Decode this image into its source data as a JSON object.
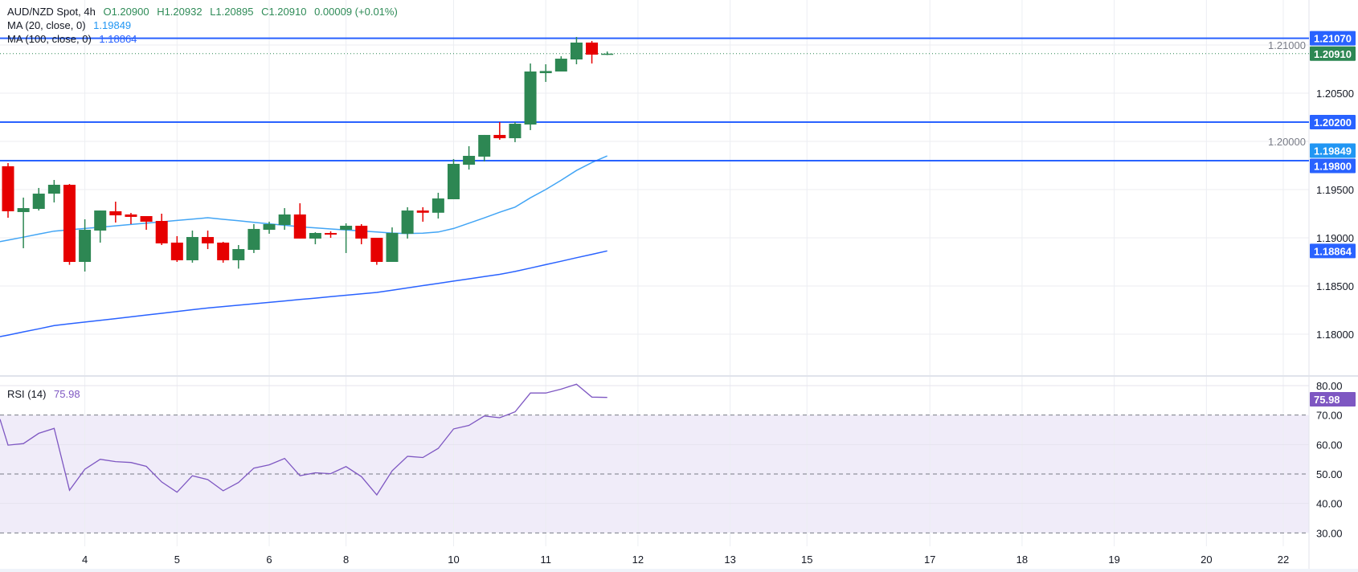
{
  "legend": {
    "symbol": "AUD/NZD Spot, 4h",
    "open": "O1.20900",
    "high": "H1.20932",
    "low": "L1.20895",
    "close": "C1.20910",
    "change": "0.00009 (+0.01%)",
    "ma20_label": "MA (20, close, 0)",
    "ma20_value": "1.19849",
    "ma100_label": "MA (100, close, 0)",
    "ma100_value": "1.18864",
    "rsi_label": "RSI (14)",
    "rsi_value": "75.98"
  },
  "colors": {
    "up": "#2d8753",
    "down": "#e60000",
    "ma20": "#42a5f5",
    "ma100": "#2962ff",
    "hline": "#2962ff",
    "rsi": "#7e57c2",
    "rsi_band": "#f0ecf9",
    "price_label": "#2d8753"
  },
  "chart_data": [
    {
      "type": "candlestick",
      "timeframe": "4h",
      "price_axis": {
        "range": [
          1.1775,
          1.213
        ],
        "ticks": [
          "1.18000",
          "1.18500",
          "1.19000",
          "1.19500",
          "1.20000",
          "1.20500",
          "1.21000"
        ]
      },
      "x_axis": {
        "ticks": [
          "4",
          "5",
          "6",
          "8",
          "10",
          "11",
          "12",
          "13",
          "15",
          "17",
          "18",
          "19",
          "20",
          "22"
        ],
        "tick_candle_index": [
          5,
          11,
          17,
          22,
          29,
          35,
          41,
          47,
          52,
          60,
          66,
          72,
          78,
          83
        ]
      },
      "candles": [
        [
          1.19742,
          1.19775,
          1.19208,
          1.19275
        ],
        [
          1.19267,
          1.19417,
          1.18892,
          1.19308
        ],
        [
          1.193,
          1.19517,
          1.19283,
          1.19458
        ],
        [
          1.19458,
          1.196,
          1.19367,
          1.1955
        ],
        [
          1.1955,
          1.19558,
          1.1872,
          1.1875
        ],
        [
          1.1875,
          1.19192,
          1.1865,
          1.19083
        ],
        [
          1.19075,
          1.19283,
          1.1895,
          1.19283
        ],
        [
          1.19275,
          1.19375,
          1.19158,
          1.19233
        ],
        [
          1.19242,
          1.19258,
          1.19142,
          1.19217
        ],
        [
          1.19225,
          1.19225,
          1.19083,
          1.19167
        ],
        [
          1.19175,
          1.1925,
          1.18925,
          1.18942
        ],
        [
          1.1895,
          1.19017,
          1.1875,
          1.18767
        ],
        [
          1.18767,
          1.19075,
          1.18742,
          1.19008
        ],
        [
          1.19008,
          1.19075,
          1.18883,
          1.18942
        ],
        [
          1.1895,
          1.18958,
          1.18742,
          1.18767
        ],
        [
          1.18767,
          1.18925,
          1.1868,
          1.18883
        ],
        [
          1.18875,
          1.19142,
          1.18842,
          1.19092
        ],
        [
          1.19083,
          1.19167,
          1.19042,
          1.19142
        ],
        [
          1.19133,
          1.19308,
          1.19083,
          1.19242
        ],
        [
          1.19242,
          1.19358,
          1.18992,
          1.18992
        ],
        [
          1.18992,
          1.19058,
          1.18933,
          1.1905
        ],
        [
          1.1905,
          1.19067,
          1.19,
          1.19033
        ],
        [
          1.19083,
          1.1915,
          1.18842,
          1.19125
        ],
        [
          1.19125,
          1.19142,
          1.18933,
          1.18992
        ],
        [
          1.19,
          1.19,
          1.1872,
          1.1875
        ],
        [
          1.1875,
          1.19108,
          1.1875,
          1.1905
        ],
        [
          1.19042,
          1.19317,
          1.18992,
          1.19283
        ],
        [
          1.19283,
          1.19317,
          1.19167,
          1.1926
        ],
        [
          1.1926,
          1.19467,
          1.192,
          1.19408
        ],
        [
          1.194,
          1.19817,
          1.194,
          1.19767
        ],
        [
          1.19758,
          1.1995,
          1.19708,
          1.1985
        ],
        [
          1.19842,
          1.20067,
          1.19792,
          1.20067
        ],
        [
          1.20067,
          1.202,
          1.20017,
          1.20033
        ],
        [
          1.20033,
          1.202,
          1.19992,
          1.20183
        ],
        [
          1.20175,
          1.20808,
          1.20117,
          1.20725
        ],
        [
          1.20708,
          1.208,
          1.20617,
          1.2073
        ],
        [
          1.20725,
          1.20883,
          1.20725,
          1.20858
        ],
        [
          1.2085,
          1.21083,
          1.208,
          1.21025
        ],
        [
          1.21025,
          1.21042,
          1.20808,
          1.209
        ],
        [
          1.209,
          1.20932,
          1.20895,
          1.2091
        ]
      ],
      "ma20": [
        1.18976,
        1.19007,
        1.19038,
        1.19069,
        1.19083,
        1.19097,
        1.1911,
        1.19124,
        1.19138,
        1.19152,
        1.19166,
        1.1918,
        1.19194,
        1.19208,
        1.19192,
        1.19177,
        1.19161,
        1.19145,
        1.1913,
        1.19114,
        1.19103,
        1.19092,
        1.19081,
        1.19071,
        1.1906,
        1.19049,
        1.19044,
        1.19048,
        1.1906,
        1.19097,
        1.19152,
        1.19207,
        1.19265,
        1.19318,
        1.19415,
        1.19501,
        1.19597,
        1.19698,
        1.19781,
        1.19849
      ],
      "ma100": [
        1.17991,
        1.18024,
        1.18056,
        1.18089,
        1.18108,
        1.18126,
        1.18144,
        1.18162,
        1.1818,
        1.18199,
        1.18217,
        1.18235,
        1.18254,
        1.18272,
        1.18287,
        1.18301,
        1.18316,
        1.1833,
        1.18345,
        1.1836,
        1.18374,
        1.18389,
        1.18404,
        1.18418,
        1.18433,
        1.18457,
        1.1848,
        1.18504,
        1.18527,
        1.18551,
        1.18574,
        1.18598,
        1.18621,
        1.18651,
        1.18686,
        1.18722,
        1.18757,
        1.18793,
        1.18828,
        1.18864
      ],
      "horizontal_lines": [
        {
          "price": 1.2107,
          "label": "1.21070"
        },
        {
          "price": 1.202,
          "label": "1.20200"
        },
        {
          "price": 1.198,
          "label": "1.19800"
        }
      ],
      "last_price": {
        "price": 1.2091,
        "label": "1.20910"
      },
      "axis_labels": [
        {
          "price": 1.19849,
          "label": "1.19849",
          "series": "ma20"
        },
        {
          "price": 1.18864,
          "label": "1.18864",
          "series": "ma100"
        }
      ]
    },
    {
      "type": "line",
      "name": "RSI (14)",
      "y_range": [
        27,
        86
      ],
      "ticks": [
        "30.00",
        "40.00",
        "50.00",
        "60.00",
        "70.00",
        "80.00"
      ],
      "band": [
        30,
        70
      ],
      "dashed_levels": [
        30,
        50,
        70
      ],
      "left_edge_value": 68.6,
      "values": [
        59.8,
        60.3,
        63.8,
        65.5,
        44.5,
        51.6,
        55.0,
        54.2,
        53.9,
        52.6,
        47.3,
        43.8,
        49.4,
        48.1,
        44.3,
        47.1,
        52.0,
        53.1,
        55.3,
        49.4,
        50.4,
        50.1,
        52.5,
        49.1,
        42.9,
        51.1,
        56.0,
        55.6,
        58.7,
        65.3,
        66.5,
        69.7,
        69.1,
        71.1,
        77.5,
        77.5,
        78.8,
        80.5,
        76.1,
        75.98
      ],
      "last_label": "75.98"
    }
  ]
}
